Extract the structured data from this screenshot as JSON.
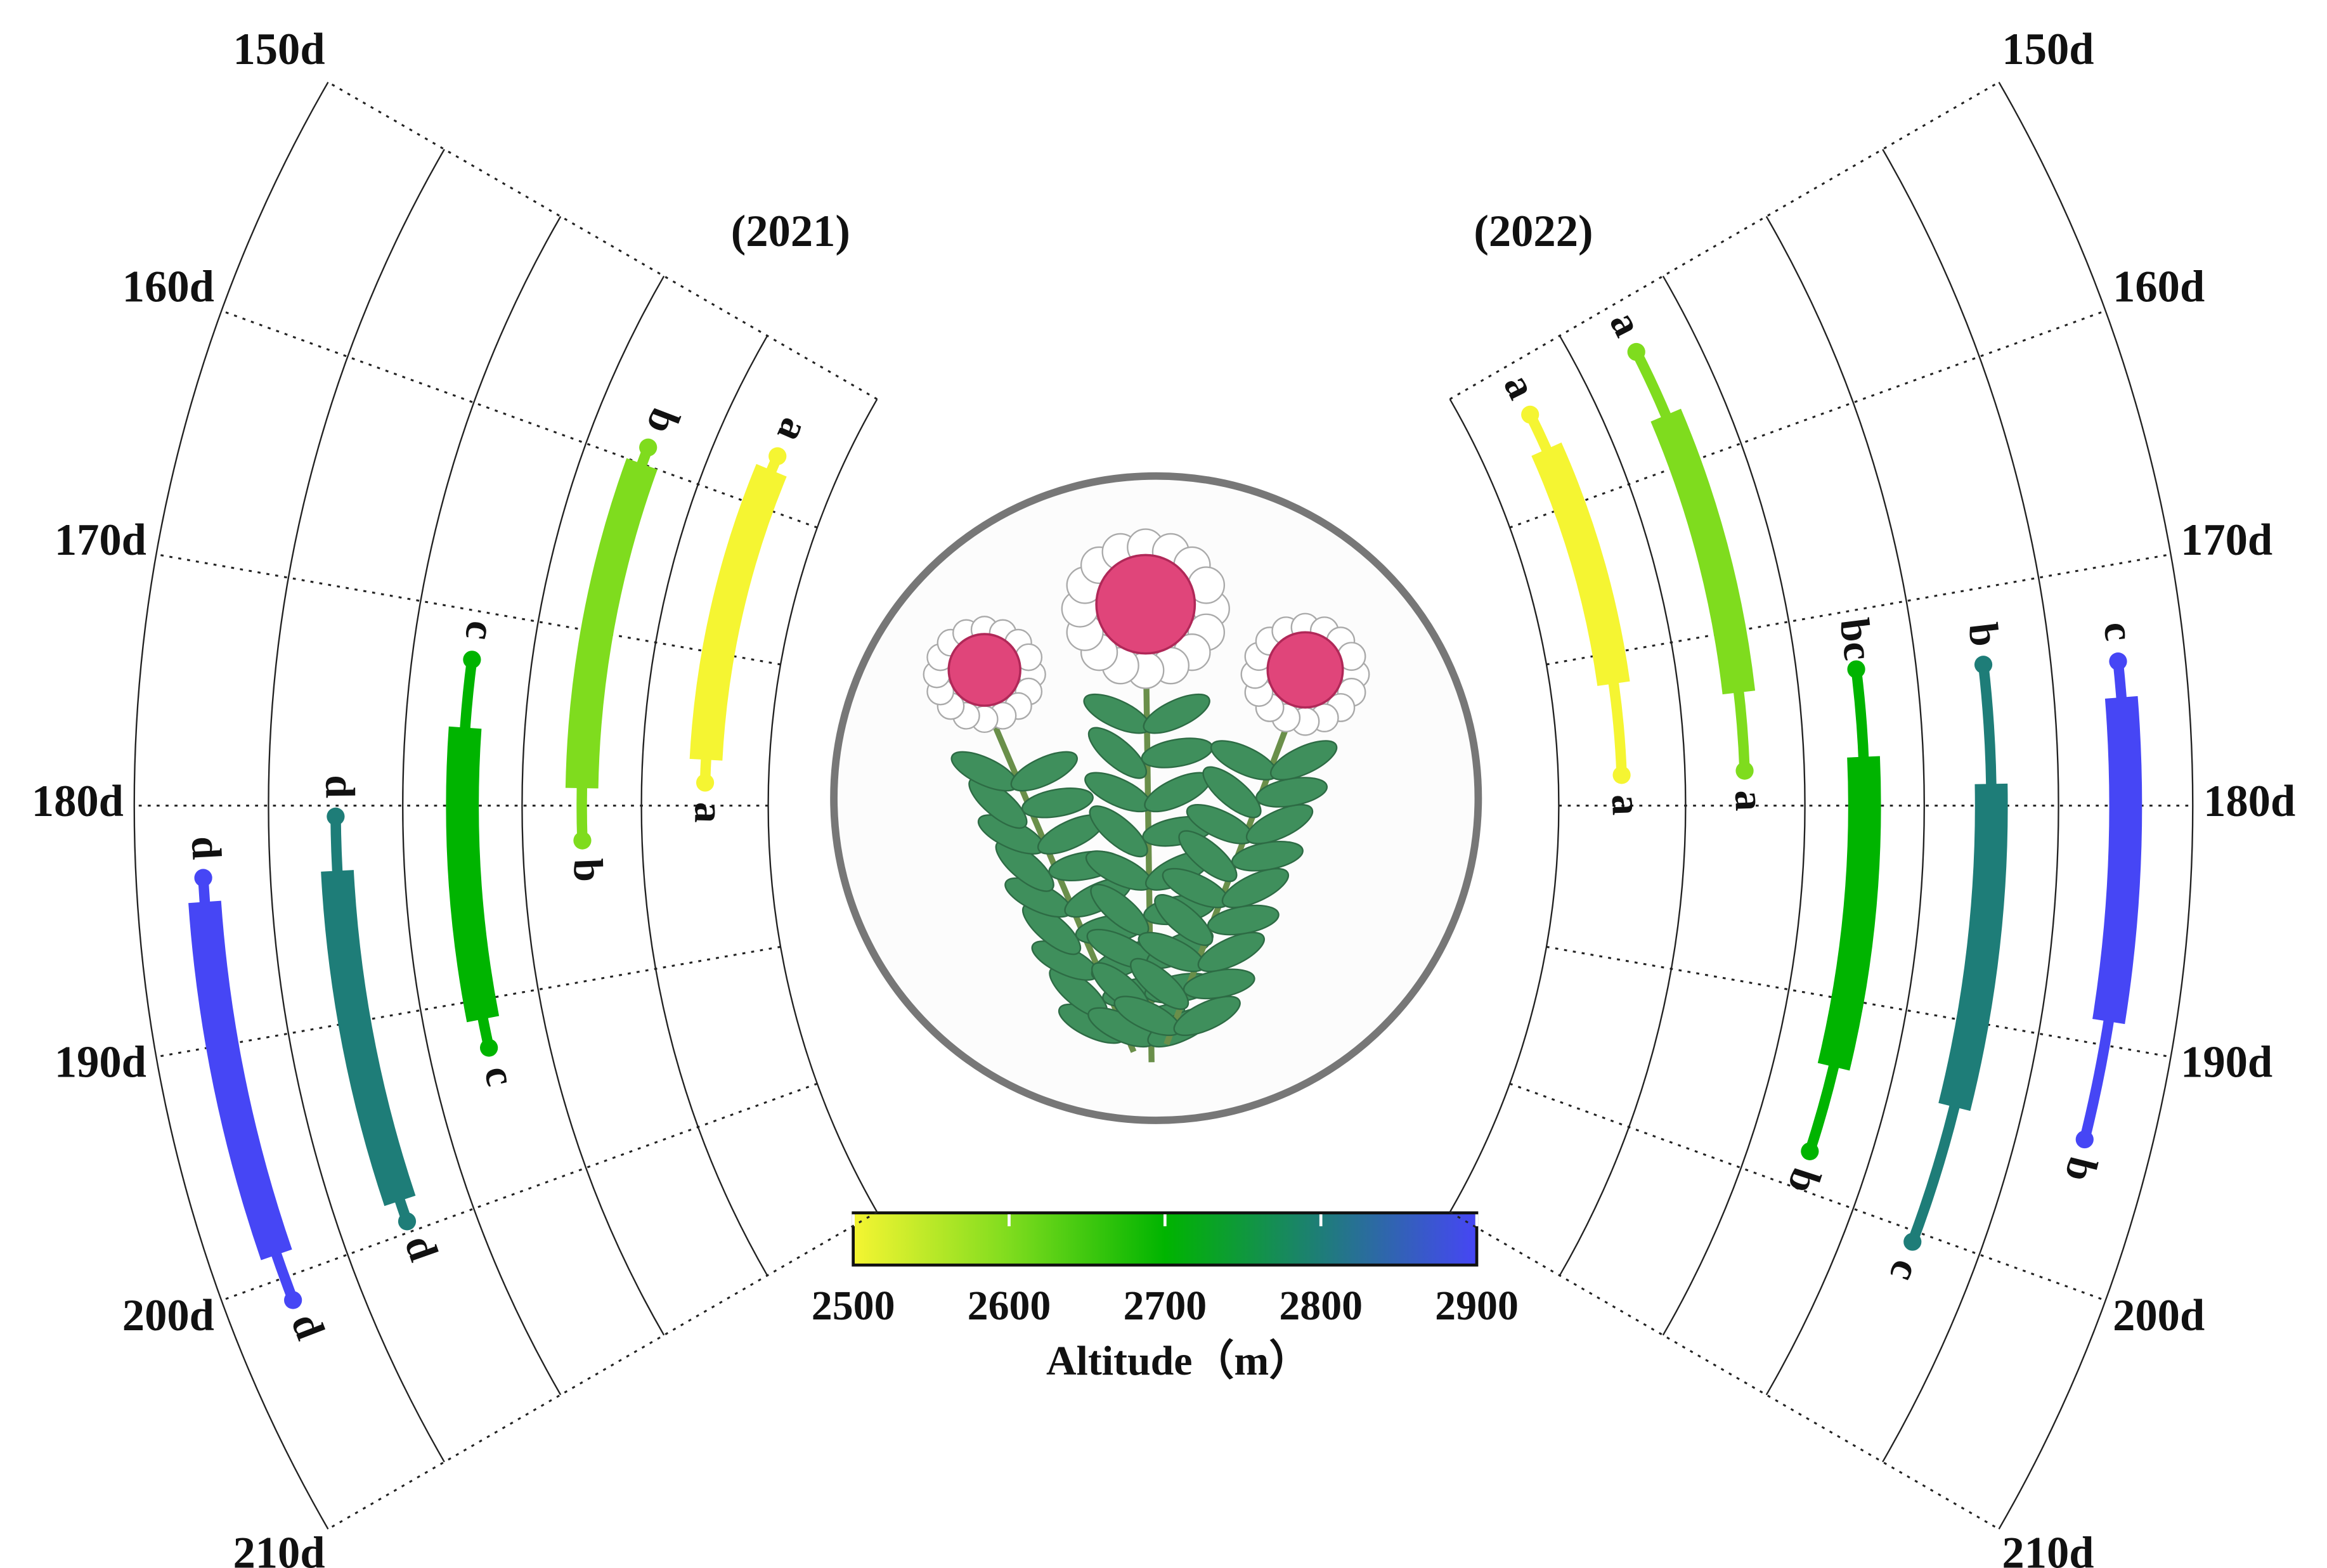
{
  "chart_data": [
    {
      "type": "polar-range",
      "title": "(2021)",
      "xlim": [
        150,
        210
      ],
      "xticks": [
        {
          "value": 150,
          "label": "150d"
        },
        {
          "value": 160,
          "label": "160d"
        },
        {
          "value": 170,
          "label": "170d"
        },
        {
          "value": 180,
          "label": "180d"
        },
        {
          "value": 190,
          "label": "190d"
        },
        {
          "value": 200,
          "label": "200d"
        },
        {
          "value": 210,
          "label": "210d"
        }
      ],
      "series": [
        {
          "altitude": 2500,
          "values": [
            156.5,
            157.5,
            177,
            178.5
          ],
          "letters": [
            "a",
            "a"
          ]
        },
        {
          "altitude": 2600,
          "values": [
            159,
            160,
            179,
            182
          ],
          "letters": [
            "b",
            "b"
          ]
        },
        {
          "altitude": 2700,
          "values": [
            172.5,
            176,
            191,
            192.5
          ],
          "letters": [
            "c",
            "c"
          ]
        },
        {
          "altitude": 2800,
          "values": [
            180.5,
            183,
            198.5,
            199.5
          ],
          "letters": [
            "d",
            "d"
          ]
        },
        {
          "altitude": 2900,
          "values": [
            183,
            184,
            199,
            201
          ],
          "letters": [
            "d",
            "d"
          ]
        }
      ]
    },
    {
      "type": "polar-range",
      "title": "(2022)",
      "xlim": [
        150,
        210
      ],
      "xticks": [
        {
          "value": 150,
          "label": "150d"
        },
        {
          "value": 160,
          "label": "160d"
        },
        {
          "value": 170,
          "label": "170d"
        },
        {
          "value": 180,
          "label": "180d"
        },
        {
          "value": 190,
          "label": "190d"
        },
        {
          "value": 200,
          "label": "200d"
        },
        {
          "value": 210,
          "label": "210d"
        }
      ],
      "series": [
        {
          "altitude": 2500,
          "values": [
            153.5,
            156,
            172,
            178
          ],
          "letters": [
            "a",
            "a"
          ]
        },
        {
          "altitude": 2600,
          "values": [
            153,
            157,
            173.5,
            178
          ],
          "letters": [
            "a",
            "a"
          ]
        },
        {
          "altitude": 2700,
          "values": [
            173,
            177.5,
            193.5,
            198
          ],
          "letters": [
            "bc",
            "b"
          ]
        },
        {
          "altitude": 2800,
          "values": [
            173.5,
            179,
            194,
            200.5
          ],
          "letters": [
            "b",
            "c"
          ]
        },
        {
          "altitude": 2900,
          "values": [
            174,
            175.5,
            189,
            194
          ],
          "letters": [
            "c",
            "b"
          ]
        }
      ]
    }
  ],
  "colorbar": {
    "label": "Altitude（m）",
    "lim": [
      2500,
      2900
    ],
    "ticks": [
      2500,
      2600,
      2700,
      2800,
      2900
    ],
    "colors": [
      "#f5f532",
      "#7fdc1e",
      "#00b400",
      "#1e7d78",
      "#4646f5"
    ]
  }
}
